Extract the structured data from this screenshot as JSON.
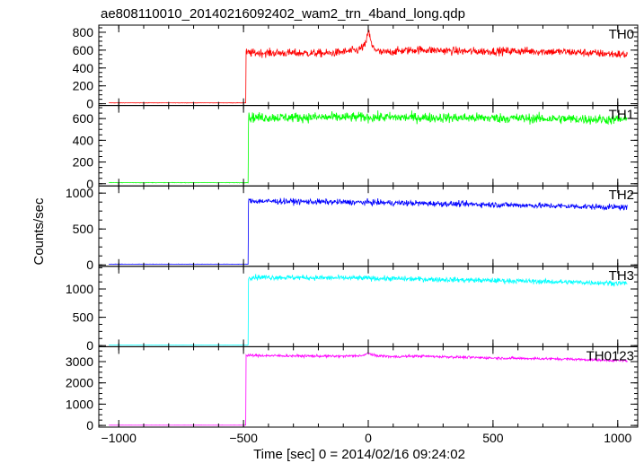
{
  "chart_data": {
    "type": "line",
    "title": "ae808110010_20140216092402_wam2_trn_4band_long.qdp",
    "xlabel": "Time [sec] 0 = 2014/02/16 09:24:02",
    "ylabel": "Counts/sec",
    "xlim": [
      -1080,
      1080
    ],
    "x_ticks": [
      -1000,
      -500,
      0,
      500,
      1000
    ],
    "x_tick_labels": [
      "−1000",
      "−500",
      "0",
      "500",
      "1000"
    ],
    "grid": false,
    "panels": [
      {
        "name": "TH0",
        "color": "#ff0000",
        "ylim": [
          -20,
          880
        ],
        "y_ticks": [
          0,
          200,
          400,
          600,
          800
        ],
        "baseline": 10,
        "step_x": -490,
        "noise": 45,
        "level": [
          [
            -490,
            570
          ],
          [
            -150,
            565
          ],
          [
            -40,
            600
          ],
          [
            -10,
            660
          ],
          [
            0,
            830
          ],
          [
            15,
            640
          ],
          [
            50,
            570
          ],
          [
            100,
            585
          ],
          [
            200,
            605
          ],
          [
            400,
            585
          ],
          [
            600,
            590
          ],
          [
            800,
            580
          ],
          [
            1030,
            550
          ]
        ]
      },
      {
        "name": "TH1",
        "color": "#00ff00",
        "ylim": [
          -20,
          720
        ],
        "y_ticks": [
          0,
          200,
          400,
          600
        ],
        "baseline": 10,
        "step_x": -480,
        "noise": 45,
        "level": [
          [
            -480,
            610
          ],
          [
            0,
            612
          ],
          [
            500,
            605
          ],
          [
            1030,
            590
          ]
        ]
      },
      {
        "name": "TH2",
        "color": "#0000ff",
        "ylim": [
          -20,
          1100
        ],
        "y_ticks": [
          0,
          500,
          1000
        ],
        "baseline": 10,
        "step_x": -480,
        "noise": 40,
        "level": [
          [
            -480,
            890
          ],
          [
            0,
            870
          ],
          [
            500,
            840
          ],
          [
            1030,
            800
          ]
        ]
      },
      {
        "name": "TH3",
        "color": "#00ffff",
        "ylim": [
          -20,
          1400
        ],
        "y_ticks": [
          0,
          500,
          1000
        ],
        "baseline": 10,
        "step_x": -480,
        "noise": 45,
        "level": [
          [
            -480,
            1210
          ],
          [
            0,
            1190
          ],
          [
            500,
            1150
          ],
          [
            1030,
            1100
          ]
        ]
      },
      {
        "name": "TH0123",
        "color": "#ff00ff",
        "ylim": [
          -80,
          3700
        ],
        "y_ticks": [
          0,
          1000,
          2000,
          3000
        ],
        "baseline": 10,
        "step_x": -490,
        "noise": 60,
        "level": [
          [
            -490,
            3290
          ],
          [
            -100,
            3250
          ],
          [
            -15,
            3290
          ],
          [
            0,
            3420
          ],
          [
            20,
            3290
          ],
          [
            100,
            3230
          ],
          [
            200,
            3260
          ],
          [
            500,
            3170
          ],
          [
            800,
            3120
          ],
          [
            1030,
            3040
          ]
        ]
      }
    ]
  }
}
